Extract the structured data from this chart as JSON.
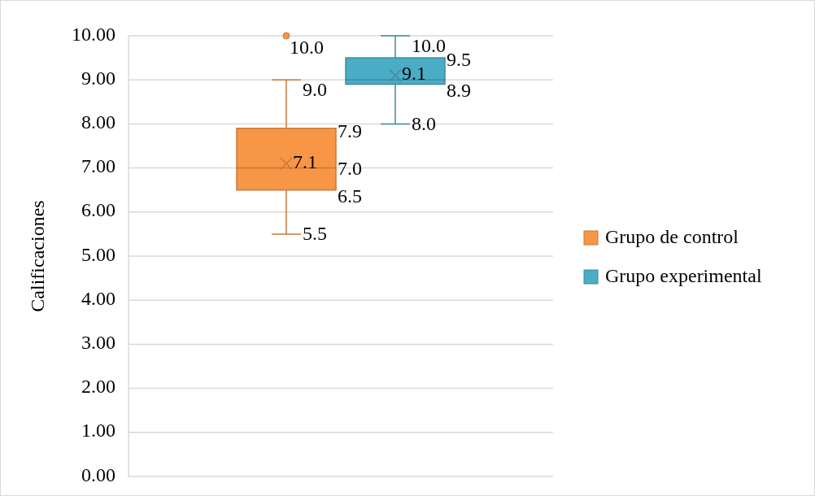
{
  "chart_data": {
    "type": "box",
    "ylabel": "Calificaciones",
    "categories": [
      null
    ],
    "ylim": [
      0,
      10
    ],
    "yticks": [
      {
        "value": 0,
        "label": "0.00"
      },
      {
        "value": 1,
        "label": "1.00"
      },
      {
        "value": 2,
        "label": "2.00"
      },
      {
        "value": 3,
        "label": "3.00"
      },
      {
        "value": 4,
        "label": "4.00"
      },
      {
        "value": 5,
        "label": "5.00"
      },
      {
        "value": 6,
        "label": "6.00"
      },
      {
        "value": 7,
        "label": "7.00"
      },
      {
        "value": 8,
        "label": "8.00"
      },
      {
        "value": 9,
        "label": "9.00"
      },
      {
        "value": 10,
        "label": "10.00"
      }
    ],
    "grid": "y",
    "legend": "right",
    "marker": "cross",
    "series": [
      {
        "name": "Grupo de control",
        "color": "#f79646",
        "boxes": [
          {
            "low": 5.5,
            "q1": 6.5,
            "median": 7.0,
            "q3": 7.9,
            "high": 9.0,
            "mean": 7.1,
            "outliers": [
              10.0
            ]
          }
        ]
      },
      {
        "name": "Grupo experimental",
        "color": "#4bacc6",
        "boxes": [
          {
            "low": 8.0,
            "q1": 8.9,
            "median": 9.0,
            "q3": 9.5,
            "high": 10.0,
            "mean": 9.1
          }
        ]
      }
    ],
    "annotations": [
      "10.0",
      "9.0",
      "7.9",
      "7.1",
      "7.0",
      "6.5",
      "5.5",
      "10.0",
      "9.5",
      "9.1",
      "8.9",
      "8.0"
    ]
  }
}
